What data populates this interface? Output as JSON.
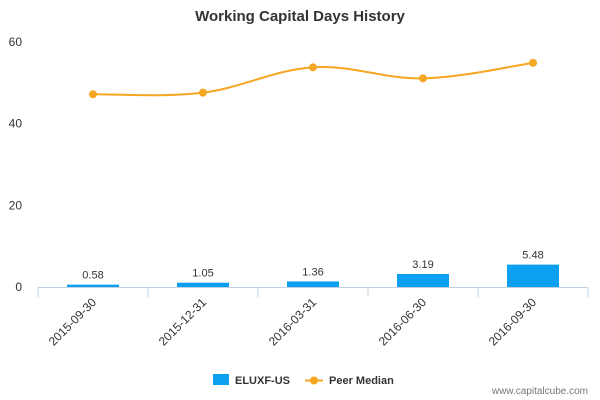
{
  "chart_data": {
    "type": "bar",
    "title": "Working Capital Days History",
    "categories": [
      "2015-09-30",
      "2015-12-31",
      "2016-03-31",
      "2016-06-30",
      "2016-09-30"
    ],
    "ylim": [
      0,
      60
    ],
    "yticks": [
      0,
      20,
      40,
      60
    ],
    "grid": false,
    "legend_position": "bottom",
    "series": [
      {
        "name": "ELUXF-US",
        "type": "bar",
        "color": "#0ea0f0",
        "values": [
          0.58,
          1.05,
          1.36,
          3.19,
          5.48
        ],
        "labels": [
          "0.58",
          "1.05",
          "1.36",
          "3.19",
          "5.48"
        ]
      },
      {
        "name": "Peer Median",
        "type": "line",
        "color": "#f5a623",
        "values": [
          47.2,
          47.6,
          53.8,
          51.1,
          54.9
        ]
      }
    ]
  },
  "watermark": "www.capitalcube.com"
}
